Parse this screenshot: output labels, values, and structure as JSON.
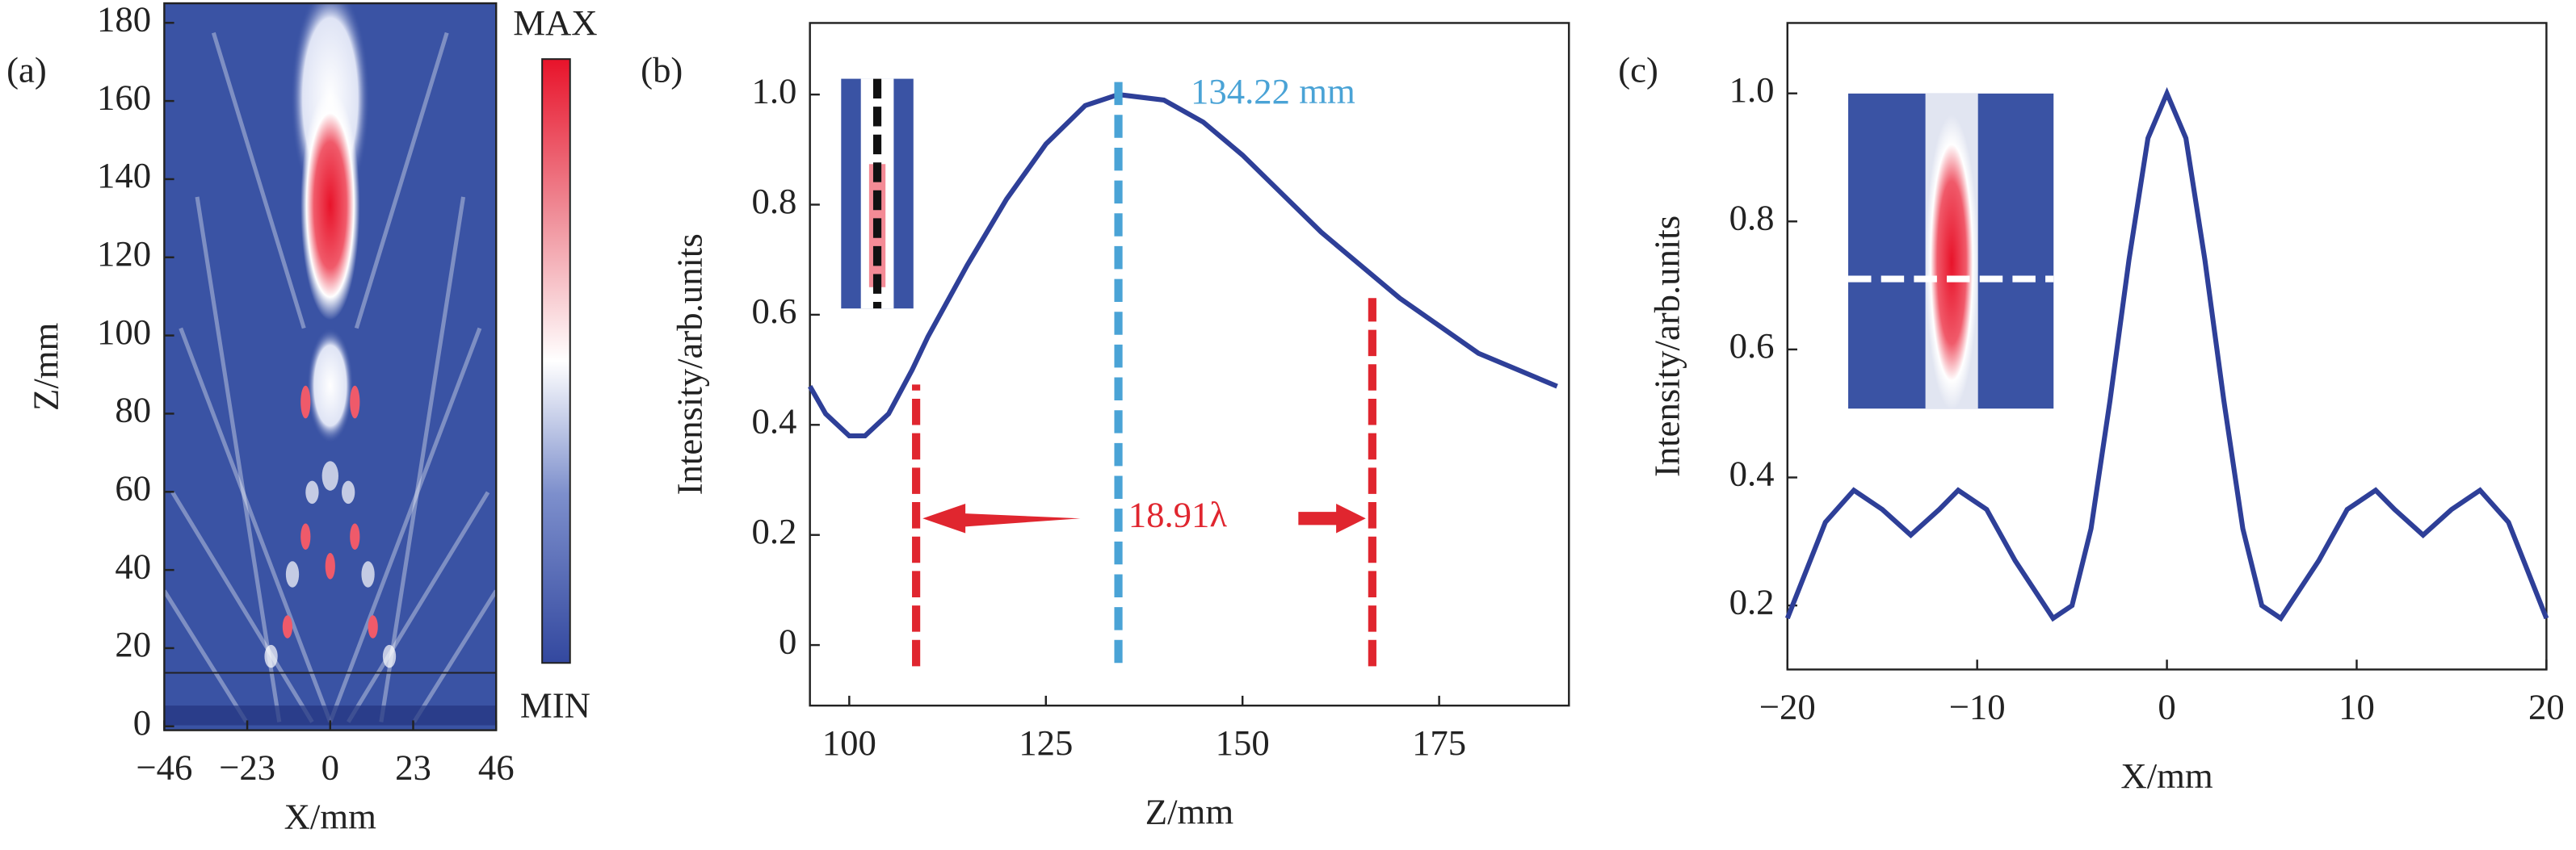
{
  "chart_data": [
    {
      "type": "heatmap",
      "label": "(a)",
      "xlabel": "X/mm",
      "ylabel": "Z/mm",
      "xlim": [
        -46,
        46
      ],
      "xticks": [
        {
          "value": -46,
          "label": "−46"
        },
        {
          "value": -23,
          "label": "−23"
        },
        0,
        23,
        46
      ],
      "ylim": [
        -1,
        185
      ],
      "yticks": [
        0,
        20,
        40,
        60,
        80,
        100,
        120,
        140,
        160,
        180
      ],
      "colorbar": {
        "max_label": "MAX",
        "min_label": "MIN"
      }
    },
    {
      "type": "line",
      "label": "(b)",
      "xlabel": "Z/mm",
      "ylabel": "Intensity/arb.units",
      "xlim": [
        95,
        191.5
      ],
      "xticks": [
        100,
        125,
        150,
        175
      ],
      "ylim": [
        -0.11,
        1.13
      ],
      "yticks": [
        0,
        0.2,
        0.4,
        0.6,
        0.8,
        {
          "value": 1,
          "label": "1.0"
        }
      ],
      "color": "#2e3f98",
      "x": [
        95,
        97,
        100,
        102,
        105,
        108,
        110,
        115,
        120,
        125,
        130,
        134.22,
        140,
        145,
        150,
        155,
        160,
        165,
        170,
        175,
        180,
        185,
        190
      ],
      "values": [
        0.47,
        0.42,
        0.38,
        0.38,
        0.42,
        0.5,
        0.56,
        0.69,
        0.81,
        0.91,
        0.98,
        1.0,
        0.99,
        0.95,
        0.89,
        0.82,
        0.75,
        0.69,
        0.63,
        0.58,
        0.53,
        0.5,
        0.47
      ],
      "peak": {
        "value": 134.22,
        "label": "134.22 mm",
        "color": "#4aa3d6"
      },
      "width": {
        "x": [
          108.5,
          166.5
        ],
        "label": "18.91λ",
        "color": "#e0262f"
      }
    },
    {
      "type": "line",
      "label": "(c)",
      "xlabel": "X/mm",
      "ylabel": "Intensity/arb.units",
      "xlim": [
        -20,
        20
      ],
      "xticks": [
        {
          "value": -20,
          "label": "−20"
        },
        {
          "value": -10,
          "label": "−10"
        },
        0,
        10,
        20
      ],
      "ylim": [
        0.1,
        1.11
      ],
      "yticks": [
        0.2,
        0.4,
        0.6,
        0.8,
        {
          "value": 1,
          "label": "1.0"
        }
      ],
      "color": "#2e3f98",
      "x": [
        -20,
        -18,
        -16.5,
        -15,
        -13.5,
        -12,
        -11,
        -9.5,
        -8,
        -6,
        -5,
        -4,
        -3,
        -2,
        -1,
        0,
        1,
        2,
        3,
        4,
        5,
        6,
        8,
        9.5,
        11,
        12,
        13.5,
        15,
        16.5,
        18,
        20
      ],
      "values": [
        0.18,
        0.33,
        0.38,
        0.35,
        0.31,
        0.35,
        0.38,
        0.35,
        0.27,
        0.18,
        0.2,
        0.32,
        0.52,
        0.74,
        0.93,
        1.0,
        0.93,
        0.74,
        0.52,
        0.32,
        0.2,
        0.18,
        0.27,
        0.35,
        0.38,
        0.35,
        0.31,
        0.35,
        0.38,
        0.33,
        0.18
      ]
    }
  ]
}
